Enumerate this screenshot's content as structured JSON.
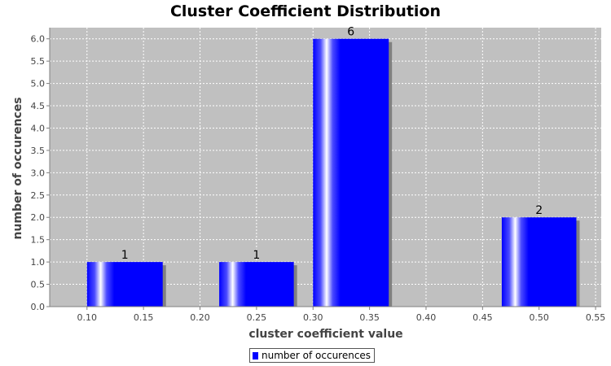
{
  "chart_data": {
    "type": "bar",
    "title": "Cluster Coefficient Distribution",
    "xlabel": "cluster coefficient value",
    "ylabel": "number of occurences",
    "xlim": [
      0.067,
      0.555
    ],
    "ylim": [
      0,
      6.25
    ],
    "x_ticks": [
      "0.10",
      "0.15",
      "0.20",
      "0.25",
      "0.30",
      "0.35",
      "0.40",
      "0.45",
      "0.50",
      "0.55"
    ],
    "y_ticks": [
      "0.0",
      "0.5",
      "1.0",
      "1.5",
      "2.0",
      "2.5",
      "3.0",
      "3.5",
      "4.0",
      "4.5",
      "5.0",
      "5.5",
      "6.0"
    ],
    "bars": [
      {
        "x_start": 0.1,
        "x_end": 0.167,
        "value": 1
      },
      {
        "x_start": 0.217,
        "x_end": 0.283,
        "value": 1
      },
      {
        "x_start": 0.3,
        "x_end": 0.367,
        "value": 6
      },
      {
        "x_start": 0.467,
        "x_end": 0.533,
        "value": 2
      }
    ],
    "series": [
      {
        "name": "number of occurences",
        "color": "#0000ff"
      }
    ],
    "grid": true,
    "legend_position": "bottom"
  }
}
